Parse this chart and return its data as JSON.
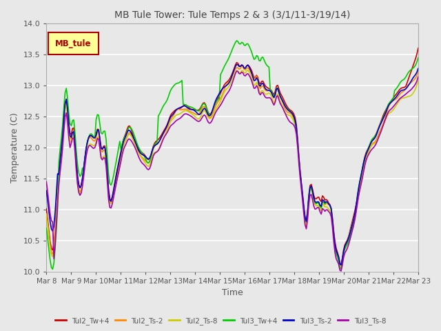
{
  "title": "MB Tule Tower: Tule Temps 2 & 3 (3/1/11-3/19/14)",
  "xlabel": "Time",
  "ylabel": "Temperature (C)",
  "ylim": [
    10.0,
    14.0
  ],
  "yticks": [
    10.0,
    10.5,
    11.0,
    11.5,
    12.0,
    12.5,
    13.0,
    13.5,
    14.0
  ],
  "xtick_labels": [
    "Mar 8",
    "Mar 9",
    "Mar 10",
    "Mar 11",
    "Mar 12",
    "Mar 13",
    "Mar 14",
    "Mar 15",
    "Mar 16",
    "Mar 17",
    "Mar 18",
    "Mar 19",
    "Mar 20",
    "Mar 21",
    "Mar 22",
    "Mar 23"
  ],
  "legend_label": "MB_tule",
  "legend_box_color": "#ffff99",
  "legend_box_edge": "#aa0000",
  "series_colors": {
    "Tul2_Tw+4": "#cc0000",
    "Tul2_Ts-2": "#ff8800",
    "Tul2_Ts-8": "#cccc00",
    "Tul3_Tw+4": "#00cc00",
    "Tul3_Ts-2": "#0000cc",
    "Tul3_Ts-8": "#aa00aa"
  },
  "background_color": "#e8e8e8",
  "grid_color": "#ffffff",
  "title_color": "#444444",
  "axis_label_color": "#555555",
  "tick_color": "#555555"
}
